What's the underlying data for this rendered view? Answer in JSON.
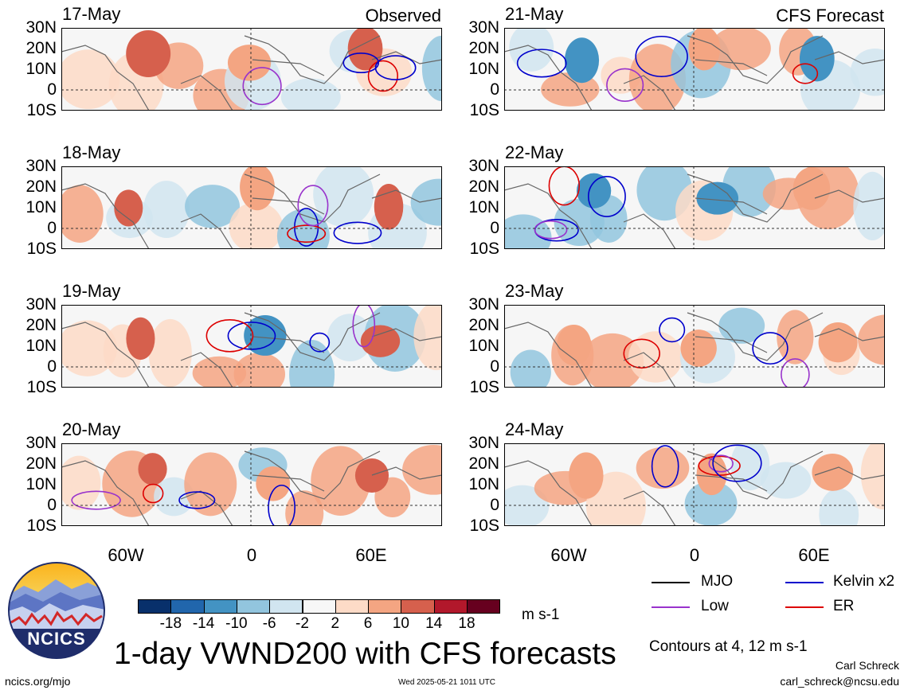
{
  "panels_left": [
    {
      "date": "17-May",
      "tag": "Observed"
    },
    {
      "date": "18-May",
      "tag": ""
    },
    {
      "date": "19-May",
      "tag": ""
    },
    {
      "date": "20-May",
      "tag": ""
    }
  ],
  "panels_right": [
    {
      "date": "21-May",
      "tag": "CFS Forecast"
    },
    {
      "date": "22-May",
      "tag": ""
    },
    {
      "date": "23-May",
      "tag": ""
    },
    {
      "date": "24-May",
      "tag": ""
    }
  ],
  "lat_labels": [
    "30N",
    "20N",
    "10N",
    "0",
    "10S"
  ],
  "lon_labels": [
    "60W",
    "0",
    "60E"
  ],
  "colorbar": {
    "labels": [
      "-18",
      "-14",
      "-10",
      "-6",
      "-2",
      "2",
      "6",
      "10",
      "14",
      "18"
    ],
    "colors": [
      "#08306b",
      "#2166ac",
      "#4393c3",
      "#92c5de",
      "#d1e5f0",
      "#f7f7f7",
      "#fddbc7",
      "#f4a582",
      "#d6604d",
      "#b2182b",
      "#67001f"
    ],
    "units": "m s-1"
  },
  "legend": {
    "mjo": {
      "label": "MJO",
      "color": "#000000"
    },
    "kelvin": {
      "label": "Kelvin x2",
      "color": "#0000cc"
    },
    "low": {
      "label": "Low",
      "color": "#9933cc"
    },
    "er": {
      "label": "ER",
      "color": "#dd0000"
    }
  },
  "contour_note": "Contours at 4, 12 m s-1",
  "title": "1-day VWND200 with CFS forecasts",
  "logo_text": "NCICS",
  "url": "ncics.org/mjo",
  "timestamp": "Wed 2025-05-21 1011 UTC",
  "author": "Carl Schreck",
  "email": "carl_schreck@ncsu.edu"
}
